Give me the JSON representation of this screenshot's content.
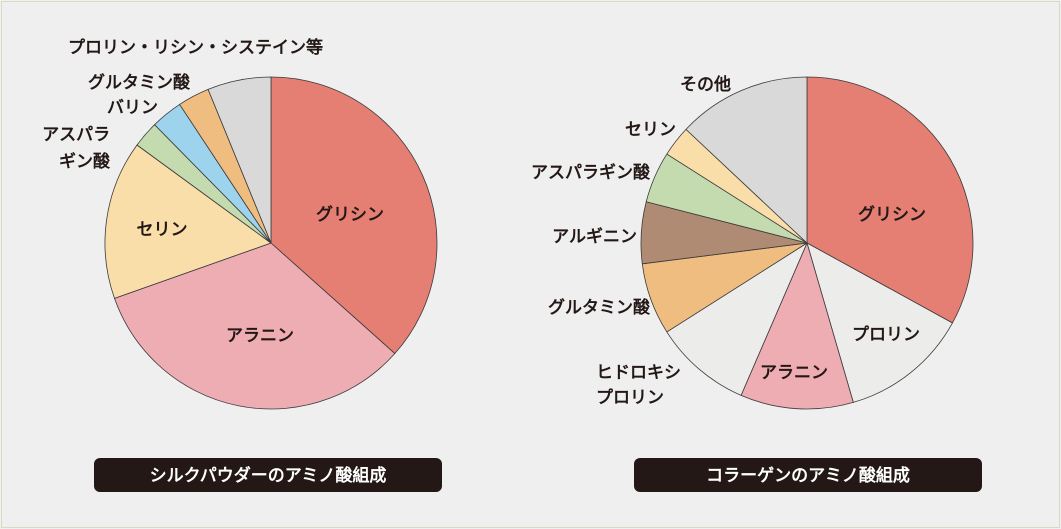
{
  "chart_data": [
    {
      "type": "pie",
      "title": "シルクパウダーのアミノ酸組成",
      "slices": [
        {
          "label": "グリシン",
          "value": 35.5,
          "color": "#e57f74"
        },
        {
          "label": "アラニン",
          "value": 32,
          "color": "#eeacb3"
        },
        {
          "label": "セリン",
          "value": 15,
          "color": "#f9deaa"
        },
        {
          "label": "アスパラギン酸",
          "value": 2.5,
          "color": "#c4dbb0"
        },
        {
          "label": "バリン",
          "value": 3,
          "color": "#9ed3ee"
        },
        {
          "label": "グルタミン酸",
          "value": 3,
          "color": "#f0bd80"
        },
        {
          "label": "プロリン・リシン・システイン等",
          "value": 6,
          "color": "#d9d9d9"
        }
      ]
    },
    {
      "type": "pie",
      "title": "コラーゲンのアミノ酸組成",
      "slices": [
        {
          "label": "グリシン",
          "value": 33,
          "color": "#e57f74"
        },
        {
          "label": "プロリン",
          "value": 12.5,
          "color": "#ececea"
        },
        {
          "label": "アラニン",
          "value": 11,
          "color": "#eeacb3"
        },
        {
          "label": "ヒドロキシプロリン",
          "value": 9.5,
          "color": "#ececea"
        },
        {
          "label": "グルタミン酸",
          "value": 7,
          "color": "#f0bd80"
        },
        {
          "label": "アルギニン",
          "value": 6,
          "color": "#b08b73"
        },
        {
          "label": "アスパラギン酸",
          "value": 5,
          "color": "#c4dbb0"
        },
        {
          "label": "セリン",
          "value": 3,
          "color": "#f9deaa"
        },
        {
          "label": "その他",
          "value": 13,
          "color": "#d9d9d9"
        }
      ]
    }
  ]
}
